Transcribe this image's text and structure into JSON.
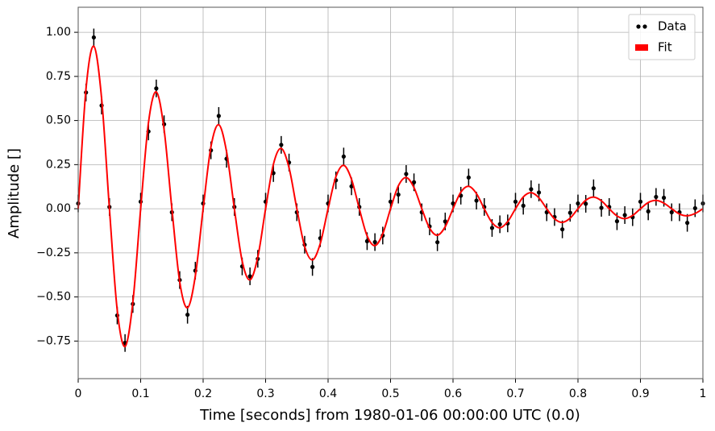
{
  "chart_data": {
    "type": "line",
    "xlabel": "Time [seconds] from 1980-01-06 00:00:00 UTC (0.0)",
    "ylabel": "Amplitude []",
    "xlim": [
      0,
      1
    ],
    "ylim": [
      -0.963,
      1.142
    ],
    "xticks": [
      0,
      0.1,
      0.2,
      0.3,
      0.4,
      0.5,
      0.6,
      0.7,
      0.8,
      0.9,
      1
    ],
    "yticks": [
      {
        "value": -0.75,
        "label": "−0.75"
      },
      {
        "value": -0.5,
        "label": "−0.50"
      },
      {
        "value": -0.25,
        "label": "−0.25"
      },
      {
        "value": 0,
        "label": "0.00"
      },
      {
        "value": 0.25,
        "label": "0.25"
      },
      {
        "value": 0.5,
        "label": "0.50"
      },
      {
        "value": 0.75,
        "label": "0.75"
      },
      {
        "value": 1,
        "label": "1.00"
      }
    ],
    "grid": true,
    "legend": "upper right",
    "x": [
      0,
      0.0125,
      0.025,
      0.0375,
      0.05,
      0.0625,
      0.075,
      0.0875,
      0.1,
      0.1125,
      0.125,
      0.1375,
      0.15,
      0.1625,
      0.175,
      0.1875,
      0.2,
      0.2125,
      0.225,
      0.2375,
      0.25,
      0.2625,
      0.275,
      0.2875,
      0.3,
      0.3125,
      0.325,
      0.3375,
      0.35,
      0.3625,
      0.375,
      0.3875,
      0.4,
      0.4125,
      0.425,
      0.4375,
      0.45,
      0.4625,
      0.475,
      0.4875,
      0.5,
      0.5125,
      0.525,
      0.5375,
      0.55,
      0.5625,
      0.575,
      0.5875,
      0.6,
      0.6125,
      0.625,
      0.6375,
      0.65,
      0.6625,
      0.675,
      0.6875,
      0.7,
      0.7125,
      0.725,
      0.7375,
      0.75,
      0.7625,
      0.775,
      0.7875,
      0.8,
      0.8125,
      0.825,
      0.8375,
      0.85,
      0.8625,
      0.875,
      0.8875,
      0.9,
      0.9125,
      0.925,
      0.9375,
      0.95,
      0.9625,
      0.975,
      0.9875,
      1
    ],
    "series": [
      {
        "name": "Data",
        "color": "#000000",
        "style": "errorbar",
        "yerr": 0.05,
        "values": [
          0.03,
          0.659,
          0.971,
          0.585,
          0.01,
          -0.605,
          -0.761,
          -0.54,
          0.04,
          0.438,
          0.682,
          0.479,
          -0.02,
          -0.404,
          -0.601,
          -0.351,
          0.03,
          0.331,
          0.526,
          0.283,
          0.01,
          -0.327,
          -0.383,
          -0.284,
          0.04,
          0.202,
          0.362,
          0.262,
          -0.02,
          -0.204,
          -0.33,
          -0.167,
          0.03,
          0.161,
          0.296,
          0.127,
          0.01,
          -0.184,
          -0.189,
          -0.152,
          0.04,
          0.08,
          0.197,
          0.15,
          -0.02,
          -0.1,
          -0.19,
          -0.072,
          0.03,
          0.074,
          0.177,
          0.046,
          0.01,
          -0.109,
          -0.088,
          -0.083,
          0.04,
          0.017,
          0.111,
          0.092,
          -0.02,
          -0.047,
          -0.117,
          -0.023,
          0.03,
          0.028,
          0.116,
          0.005,
          0.01,
          -0.071,
          -0.036,
          -0.048,
          0.04,
          -0.015,
          0.067,
          0.062,
          -0.02,
          -0.02,
          -0.08,
          0.003,
          0.03
        ]
      },
      {
        "name": "Fit",
        "color": "#ff0000",
        "style": "line",
        "values": [
          0,
          0.679,
          0.921,
          0.625,
          0,
          -0.575,
          -0.781,
          -0.53,
          0,
          0.488,
          0.662,
          0.449,
          0,
          -0.414,
          -0.561,
          -0.381,
          0,
          0.351,
          0.476,
          0.323,
          0,
          -0.297,
          -0.403,
          -0.274,
          0,
          0.252,
          0.342,
          0.232,
          0,
          -0.214,
          -0.29,
          -0.197,
          0,
          0.181,
          0.246,
          0.167,
          0,
          -0.154,
          -0.209,
          -0.142,
          0,
          0.13,
          0.177,
          0.12,
          0,
          -0.11,
          -0.15,
          -0.102,
          0,
          0.094,
          0.127,
          0.086,
          0,
          -0.079,
          -0.108,
          -0.073,
          0,
          0.067,
          0.091,
          0.062,
          0,
          -0.057,
          -0.077,
          -0.053,
          0,
          0.048,
          0.066,
          0.045,
          0,
          -0.041,
          -0.056,
          -0.038,
          0,
          0.035,
          0.047,
          0.032,
          0,
          -0.03,
          -0.04,
          -0.027,
          0
        ]
      }
    ]
  }
}
